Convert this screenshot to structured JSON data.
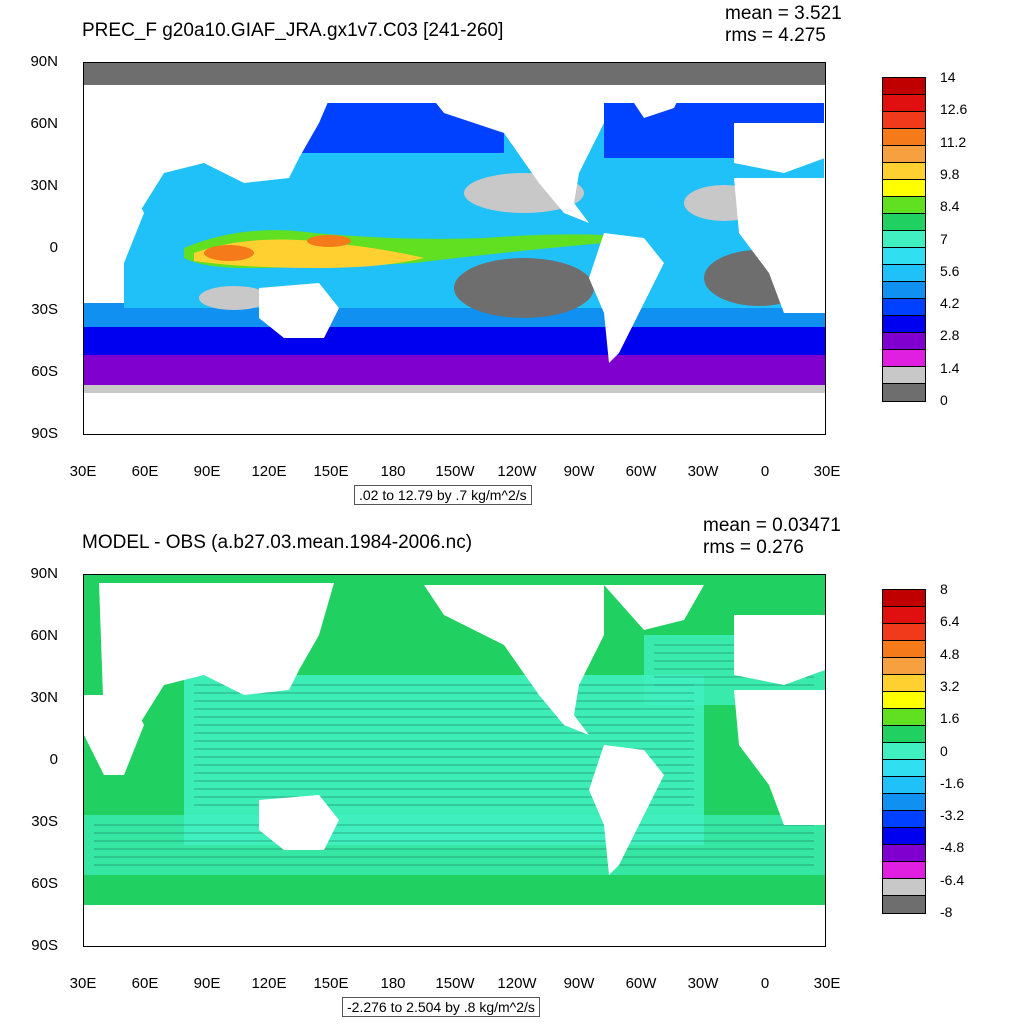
{
  "panels": [
    {
      "title": "PREC_F g20a10.GIAF_JRA.gx1v7.C03 [241-260]",
      "mean": "mean = 3.521",
      "rms": "rms = 4.275",
      "range_note": ".02 to 12.79 by .7 kg/m^2/s",
      "colorbar_labels": [
        "14",
        "12.6",
        "11.2",
        "9.8",
        "8.4",
        "7",
        "5.6",
        "4.2",
        "2.8",
        "1.4",
        "0"
      ],
      "colorbar_colors": [
        "#c00000",
        "#e01010",
        "#f03a1a",
        "#f47a1a",
        "#f7a040",
        "#ffd030",
        "#ffff00",
        "#60e020",
        "#20d060",
        "#40f0c0",
        "#30e0f0",
        "#20c0f8",
        "#1090f0",
        "#0040ff",
        "#0000f0",
        "#8000d0",
        "#e020e0",
        "#c8c8c8",
        "#6e6e6e"
      ]
    },
    {
      "title": "MODEL - OBS (a.b27.03.mean.1984-2006.nc)",
      "mean": "mean = 0.03471",
      "rms": "rms = 0.276",
      "range_note": "-2.276 to 2.504 by .8 kg/m^2/s",
      "colorbar_labels": [
        "8",
        "6.4",
        "4.8",
        "3.2",
        "1.6",
        "0",
        "-1.6",
        "-3.2",
        "-4.8",
        "-6.4",
        "-8"
      ],
      "colorbar_colors": [
        "#c00000",
        "#e01010",
        "#f03a1a",
        "#f47a1a",
        "#f7a040",
        "#ffd030",
        "#ffff00",
        "#60e020",
        "#20d060",
        "#40f0c0",
        "#30e0f0",
        "#20c0f8",
        "#1090f0",
        "#0040ff",
        "#0000f0",
        "#8000d0",
        "#e020e0",
        "#c8c8c8",
        "#6e6e6e"
      ]
    }
  ],
  "axes": {
    "y_ticks": [
      "90N",
      "60N",
      "30N",
      "0",
      "30S",
      "60S",
      "90S"
    ],
    "x_ticks": [
      "30E",
      "60E",
      "90E",
      "120E",
      "150E",
      "180",
      "150W",
      "120W",
      "90W",
      "60W",
      "30W",
      "0",
      "30E"
    ]
  },
  "colors": {
    "land": "#ffffff",
    "ice_top": "#6e6e6e",
    "ocean_bg_bottom": "#20d060",
    "diff_negative": "#40f0c0",
    "coastline": "#000000"
  },
  "chart_data": [
    {
      "type": "heatmap",
      "title": "PREC_F g20a10.GIAF_JRA.gx1v7.C03 [241-260]",
      "xlabel": "",
      "ylabel": "",
      "xlim": [
        30,
        390
      ],
      "ylim": [
        -90,
        90
      ],
      "levels": [
        0,
        1.4,
        2.8,
        4.2,
        5.6,
        7,
        8.4,
        9.8,
        11.2,
        12.6,
        14
      ],
      "mean": 3.521,
      "rms": 4.275,
      "min": 0.02,
      "max": 12.79,
      "interval": 0.7
    },
    {
      "type": "heatmap",
      "title": "MODEL - OBS (a.b27.03.mean.1984-2006.nc)",
      "xlabel": "",
      "ylabel": "",
      "xlim": [
        30,
        390
      ],
      "ylim": [
        -90,
        90
      ],
      "levels": [
        -8,
        -6.4,
        -4.8,
        -3.2,
        -1.6,
        0,
        1.6,
        3.2,
        4.8,
        6.4,
        8
      ],
      "mean": 0.03471,
      "rms": 0.276,
      "min": -2.276,
      "max": 2.504,
      "interval": 0.8
    }
  ]
}
